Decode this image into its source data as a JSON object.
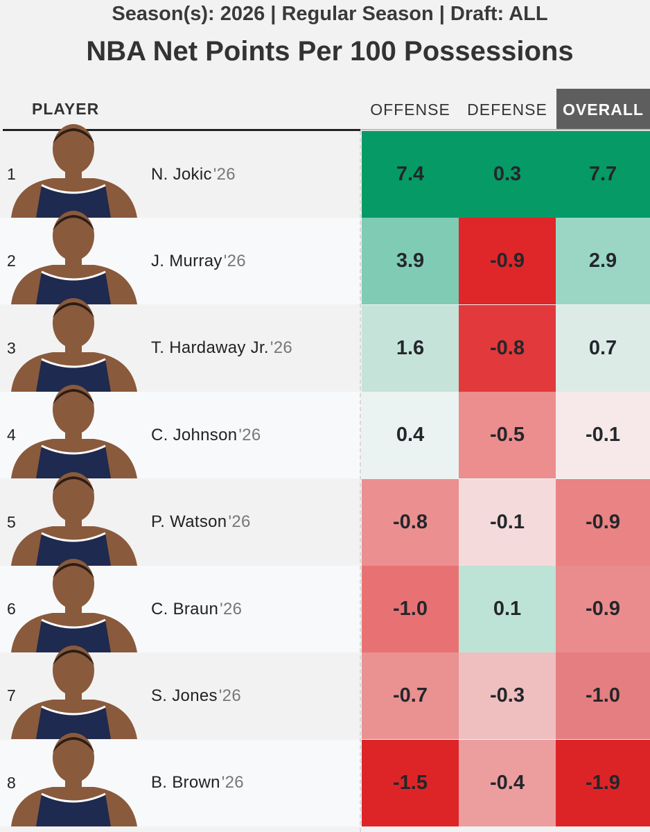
{
  "subtitle": "Season(s): 2026 | Regular Season | Draft: ALL",
  "title": "NBA Net Points Per 100 Possessions",
  "headers": {
    "player": "PLAYER",
    "offense": "OFFENSE",
    "defense": "DEFENSE",
    "overall": "OVERALL"
  },
  "colors": {
    "jersey": "#1e2a4f",
    "skin": "#8a5a3c",
    "header_active": "#5e5e5e"
  },
  "chart_data": {
    "type": "table",
    "title": "NBA Net Points Per 100 Possessions",
    "subtitle": "Season(s): 2026 | Regular Season | Draft: ALL",
    "columns": [
      "OFFENSE",
      "DEFENSE",
      "OVERALL"
    ],
    "rows": [
      {
        "rank": "1",
        "name": "N. Jokic",
        "year": "'26",
        "offense": "7.4",
        "defense": "0.3",
        "overall": "7.7",
        "colors": {
          "row": "#f2f2f2",
          "offense": "#069a66",
          "defense": "#069a66",
          "overall": "#069a66"
        }
      },
      {
        "rank": "2",
        "name": "J. Murray",
        "year": "'26",
        "offense": "3.9",
        "defense": "-0.9",
        "overall": "2.9",
        "colors": {
          "row": "#f8f9fa",
          "offense": "#80cbb4",
          "defense": "#df2629",
          "overall": "#9bd6c4"
        }
      },
      {
        "rank": "3",
        "name": "T. Hardaway Jr.",
        "year": "'26",
        "offense": "1.6",
        "defense": "-0.8",
        "overall": "0.7",
        "colors": {
          "row": "#f2f2f2",
          "offense": "#c6e3da",
          "defense": "#e2393c",
          "overall": "#dcebe6"
        }
      },
      {
        "rank": "4",
        "name": "C. Johnson",
        "year": "'26",
        "offense": "0.4",
        "defense": "-0.5",
        "overall": "-0.1",
        "colors": {
          "row": "#f8f9fa",
          "offense": "#eaf3f1",
          "defense": "#ec8d8e",
          "overall": "#f7e9e9"
        }
      },
      {
        "rank": "5",
        "name": "P. Watson",
        "year": "'26",
        "offense": "-0.8",
        "defense": "-0.1",
        "overall": "-0.9",
        "colors": {
          "row": "#f2f2f2",
          "offense": "#ec8f90",
          "defense": "#f5dadb",
          "overall": "#e98384"
        }
      },
      {
        "rank": "6",
        "name": "C. Braun",
        "year": "'26",
        "offense": "-1.0",
        "defense": "0.1",
        "overall": "-0.9",
        "colors": {
          "row": "#f8f9fa",
          "offense": "#e87273",
          "defense": "#bde3d6",
          "overall": "#ea8c8d"
        }
      },
      {
        "rank": "7",
        "name": "S. Jones",
        "year": "'26",
        "offense": "-0.7",
        "defense": "-0.3",
        "overall": "-1.0",
        "colors": {
          "row": "#f2f2f2",
          "offense": "#ea9192",
          "defense": "#efbfc0",
          "overall": "#e57e80"
        }
      },
      {
        "rank": "8",
        "name": "B. Brown",
        "year": "'26",
        "offense": "-1.5",
        "defense": "-0.4",
        "overall": "-1.9",
        "colors": {
          "row": "#f8f9fa",
          "offense": "#dd2528",
          "defense": "#ec9d9e",
          "overall": "#dc2427"
        }
      }
    ]
  }
}
